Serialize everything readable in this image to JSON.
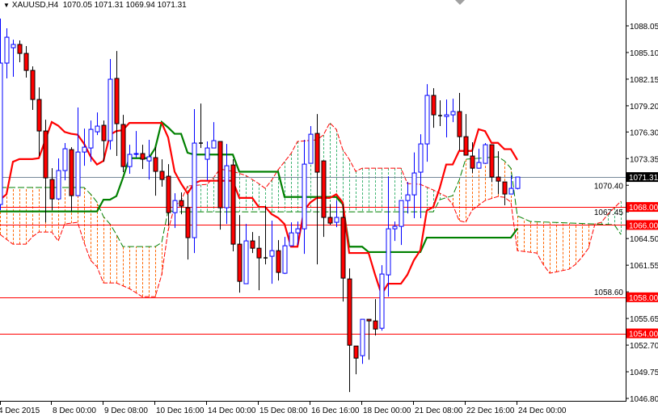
{
  "header": {
    "symbol": "XAUUSD,H4",
    "open": "1070.05",
    "high": "1071.31",
    "low": "1069.94",
    "close": "1071.31",
    "menu_icon": "triangle-down-icon"
  },
  "colors": {
    "bull": "#0000ff",
    "bear_body": "#ff0000",
    "bear_wick": "#000000",
    "tenkan": "#ff0000",
    "kijun": "#008000",
    "span_a": "#ff0000",
    "span_b": "#008000",
    "cloud_bearish": "#ff6600",
    "cloud_bullish": "#3cb371",
    "level_line": "#ff0000",
    "price_line": "#778899"
  },
  "chart_data": {
    "type": "candlestick",
    "timeframe": "H4",
    "ylim": [
      1046.8,
      1088.05
    ],
    "y_ticks": [
      "1088.05",
      "1085.10",
      "1082.15",
      "1079.20",
      "1076.30",
      "1073.35",
      "1070.40",
      "1067.45",
      "1064.50",
      "1061.55",
      "1058.60",
      "1055.65",
      "1052.70",
      "1049.75",
      "1046.80"
    ],
    "x_labels": [
      "4 Dec 2015",
      "8 Dec 00:00",
      "9 Dec 08:00",
      "10 Dec 16:00",
      "14 Dec 00:00",
      "15 Dec 08:00",
      "16 Dec 16:00",
      "18 Dec 00:00",
      "21 Dec 08:00",
      "22 Dec 16:00",
      "24 Dec 00:00"
    ],
    "candles_ohlc": [
      [
        1068.27,
        1088.85,
        1067.64,
        1083.93
      ],
      [
        1083.93,
        1087.78,
        1082.23,
        1086.79
      ],
      [
        1085.63,
        1086.52,
        1082.41,
        1085.99
      ],
      [
        1085.99,
        1086.44,
        1084.02,
        1085.0
      ],
      [
        1085.0,
        1085.81,
        1082.32,
        1083.12
      ],
      [
        1083.12,
        1083.57,
        1078.74,
        1079.9
      ],
      [
        1079.9,
        1081.24,
        1073.64,
        1076.41
      ],
      [
        1076.41,
        1077.66,
        1066.3,
        1071.22
      ],
      [
        1071.04,
        1072.29,
        1067.64,
        1068.89
      ],
      [
        1068.89,
        1073.37,
        1068.8,
        1072.03
      ],
      [
        1072.03,
        1075.07,
        1070.95,
        1074.44
      ],
      [
        1074.35,
        1074.62,
        1067.46,
        1069.25
      ],
      [
        1069.25,
        1079.01,
        1069.25,
        1074.08
      ],
      [
        1074.08,
        1076.68,
        1072.56,
        1074.62
      ],
      [
        1074.53,
        1077.57,
        1073.01,
        1076.59
      ],
      [
        1076.32,
        1078.47,
        1075.96,
        1076.95
      ],
      [
        1077.04,
        1077.57,
        1073.01,
        1075.34
      ],
      [
        1075.34,
        1084.38,
        1074.35,
        1082.14
      ],
      [
        1082.23,
        1085.27,
        1073.64,
        1077.22
      ],
      [
        1077.13,
        1078.2,
        1071.85,
        1072.47
      ],
      [
        1072.47,
        1074.89,
        1071.67,
        1073.82
      ],
      [
        1073.82,
        1076.41,
        1073.46,
        1073.91
      ],
      [
        1073.91,
        1074.89,
        1072.2,
        1073.28
      ],
      [
        1073.1,
        1075.43,
        1071.04,
        1073.55
      ],
      [
        1073.46,
        1074.62,
        1069.25,
        1071.94
      ],
      [
        1071.94,
        1073.28,
        1070.24,
        1071.04
      ],
      [
        1071.4,
        1072.74,
        1065.94,
        1067.37
      ],
      [
        1067.37,
        1069.52,
        1065.67,
        1068.71
      ],
      [
        1068.71,
        1069.61,
        1067.19,
        1068.09
      ],
      [
        1067.91,
        1069.43,
        1062.18,
        1064.6
      ],
      [
        1064.6,
        1078.83,
        1062.9,
        1075.07
      ],
      [
        1075.07,
        1079.45,
        1074.53,
        1075.07
      ],
      [
        1073.28,
        1075.25,
        1070.95,
        1074.53
      ],
      [
        1074.53,
        1077.39,
        1074.53,
        1075.34
      ],
      [
        1075.25,
        1075.25,
        1065.49,
        1067.91
      ],
      [
        1067.91,
        1074.98,
        1066.12,
        1072.56
      ],
      [
        1072.65,
        1073.28,
        1063.08,
        1063.88
      ],
      [
        1063.88,
        1067.1,
        1058.51,
        1059.76
      ],
      [
        1059.5,
        1066.12,
        1059.5,
        1064.24
      ],
      [
        1064.24,
        1065.22,
        1062.9,
        1063.43
      ],
      [
        1063.43,
        1064.78,
        1058.78,
        1062.36
      ],
      [
        1062.36,
        1068.09,
        1061.64,
        1062.36
      ],
      [
        1062.54,
        1066.48,
        1059.5,
        1063.16
      ],
      [
        1063.16,
        1064.33,
        1059.85,
        1060.75
      ],
      [
        1060.66,
        1064.69,
        1060.57,
        1063.7
      ],
      [
        1063.7,
        1066.3,
        1063.7,
        1065.13
      ],
      [
        1065.13,
        1066.39,
        1063.79,
        1065.58
      ],
      [
        1065.58,
        1075.43,
        1062.81,
        1072.74
      ],
      [
        1072.83,
        1076.95,
        1072.83,
        1076.05
      ],
      [
        1076.14,
        1078.29,
        1061.64,
        1071.85
      ],
      [
        1073.1,
        1073.1,
        1064.69,
        1066.84
      ],
      [
        1066.84,
        1068.27,
        1066.03,
        1066.21
      ],
      [
        1066.3,
        1068.71,
        1065.76,
        1066.84
      ],
      [
        1066.84,
        1068.36,
        1057.53,
        1060.12
      ],
      [
        1060.03,
        1061.2,
        1047.5,
        1052.69
      ],
      [
        1052.6,
        1052.6,
        1049.47,
        1051.26
      ],
      [
        1051.53,
        1055.56,
        1050.63,
        1055.56
      ],
      [
        1055.56,
        1055.56,
        1051.08,
        1055.38
      ],
      [
        1055.38,
        1057.8,
        1053.77,
        1054.48
      ],
      [
        1054.57,
        1061.55,
        1054.3,
        1060.57
      ],
      [
        1060.48,
        1071.4,
        1058.06,
        1065.58
      ],
      [
        1065.58,
        1066.39,
        1064.24,
        1065.85
      ],
      [
        1065.85,
        1068.71,
        1063.79,
        1068.71
      ],
      [
        1068.71,
        1070.77,
        1067.28,
        1069.34
      ],
      [
        1069.34,
        1074.03,
        1066.75,
        1071.76
      ],
      [
        1071.85,
        1076.05,
        1066.75,
        1074.98
      ],
      [
        1074.98,
        1081.6,
        1073.01,
        1080.35
      ],
      [
        1080.35,
        1081.15,
        1076.77,
        1078.2
      ],
      [
        1078.11,
        1079.81,
        1076.95,
        1078.11
      ],
      [
        1078.02,
        1079.9,
        1075.7,
        1078.2
      ],
      [
        1078.2,
        1079.99,
        1077.39,
        1078.56
      ],
      [
        1078.56,
        1080.62,
        1074.26,
        1075.78
      ],
      [
        1075.78,
        1078.29,
        1073.73,
        1073.73
      ],
      [
        1073.64,
        1075.16,
        1071.76,
        1072.29
      ],
      [
        1072.29,
        1074.44,
        1072.29,
        1072.92
      ],
      [
        1072.83,
        1075.07,
        1072.83,
        1074.89
      ],
      [
        1074.89,
        1074.89,
        1070.77,
        1071.31
      ],
      [
        1071.31,
        1074.17,
        1069.43,
        1070.86
      ],
      [
        1070.77,
        1070.77,
        1068.18,
        1069.43
      ],
      [
        1069.43,
        1071.49,
        1069.43,
        1070.06
      ],
      [
        1070.05,
        1071.31,
        1069.94,
        1071.31
      ]
    ],
    "tenkan_sen": [
      1068.8,
      1069.4,
      1073.0,
      1073.3,
      1073.3,
      1073.3,
      1073.4,
      1075.4,
      1077.4,
      1077.0,
      1076.3,
      1076.1,
      1076.0,
      1075.0,
      1073.6,
      1072.7,
      1073.1,
      1076.0,
      1076.4,
      1076.5,
      1077.3,
      1077.3,
      1077.3,
      1077.3,
      1077.3,
      1077.3,
      1075.7,
      1071.9,
      1070.6,
      1069.5,
      1070.6,
      1070.9,
      1070.9,
      1070.9,
      1070.9,
      1070.9,
      1070.9,
      1069.0,
      1069.0,
      1069.0,
      1068.0,
      1068.0,
      1067.2,
      1066.8,
      1066.1,
      1063.6,
      1063.6,
      1067.6,
      1068.5,
      1069.0,
      1069.0,
      1069.0,
      1069.4,
      1068.5,
      1062.9,
      1062.9,
      1062.9,
      1062.9,
      1060.5,
      1058.3,
      1059.5,
      1059.5,
      1059.5,
      1060.5,
      1062.1,
      1063.2,
      1067.6,
      1068.0,
      1070.1,
      1072.7,
      1072.7,
      1074.2,
      1074.2,
      1074.2,
      1076.6,
      1076.4,
      1075.1,
      1075.1,
      1074.4,
      1074.4,
      1073.2
    ],
    "kijun_sen": [
      1067.5,
      1067.5,
      1067.5,
      1067.5,
      1067.5,
      1067.5,
      1067.5,
      1067.5,
      1067.5,
      1067.5,
      1067.5,
      1067.5,
      1067.5,
      1067.5,
      1067.5,
      1067.5,
      1068.8,
      1068.8,
      1069.2,
      1071.2,
      1073.4,
      1073.4,
      1073.4,
      1073.4,
      1074.5,
      1077.4,
      1076.8,
      1076.1,
      1076.1,
      1074.0,
      1073.8,
      1073.8,
      1073.8,
      1073.8,
      1073.8,
      1073.8,
      1073.8,
      1071.9,
      1071.9,
      1071.9,
      1071.9,
      1071.9,
      1071.9,
      1071.9,
      1069.1,
      1069.1,
      1069.1,
      1069.1,
      1069.1,
      1069.1,
      1069.1,
      1069.1,
      1069.1,
      1068.3,
      1063.6,
      1063.6,
      1063.6,
      1063.0,
      1063.0,
      1063.0,
      1063.0,
      1063.0,
      1063.0,
      1063.0,
      1063.0,
      1063.0,
      1064.6,
      1064.6,
      1064.6,
      1064.6,
      1064.6,
      1064.6,
      1064.6,
      1064.6,
      1064.6,
      1064.6,
      1064.6,
      1064.6,
      1064.6,
      1064.6,
      1065.6
    ],
    "senkou_span_a_points": [
      [
        0,
        1064.96
      ],
      [
        2,
        1063.88
      ],
      [
        4,
        1063.88
      ],
      [
        5,
        1064.69
      ],
      [
        6,
        1065.22
      ],
      [
        8,
        1065.22
      ],
      [
        9,
        1064.24
      ],
      [
        10,
        1066.12
      ],
      [
        12,
        1066.3
      ],
      [
        13,
        1064.06
      ],
      [
        14,
        1062.09
      ],
      [
        15,
        1061.38
      ],
      [
        16,
        1059.58
      ],
      [
        18,
        1059.58
      ],
      [
        20,
        1058.96
      ],
      [
        22,
        1058.06
      ],
      [
        24,
        1058.06
      ],
      [
        25,
        1060.48
      ],
      [
        26,
        1065.4
      ],
      [
        27,
        1068.09
      ],
      [
        28,
        1068.71
      ],
      [
        29,
        1070.32
      ],
      [
        32,
        1070.5
      ],
      [
        33,
        1071.22
      ],
      [
        34,
        1072.2
      ],
      [
        36,
        1071.94
      ],
      [
        38,
        1071.49
      ],
      [
        40,
        1070.59
      ],
      [
        41,
        1070.06
      ],
      [
        42,
        1070.95
      ],
      [
        43,
        1072.11
      ],
      [
        44,
        1073.01
      ],
      [
        45,
        1073.91
      ],
      [
        46,
        1075.25
      ],
      [
        49,
        1075.43
      ],
      [
        50,
        1075.96
      ],
      [
        51,
        1077.31
      ],
      [
        52,
        1076.59
      ],
      [
        53,
        1074.35
      ],
      [
        54,
        1073.28
      ],
      [
        55,
        1071.94
      ],
      [
        56,
        1072.29
      ],
      [
        62,
        1072.29
      ],
      [
        63,
        1070.59
      ],
      [
        65,
        1070.5
      ],
      [
        67,
        1069.88
      ],
      [
        69,
        1069.16
      ],
      [
        70,
        1068.27
      ],
      [
        71,
        1066.48
      ],
      [
        72,
        1066.3
      ],
      [
        73,
        1067.64
      ],
      [
        75,
        1068.71
      ],
      [
        77,
        1069.16
      ],
      [
        78,
        1069.07
      ],
      [
        79,
        1068.54
      ],
      [
        80,
        1063.16
      ],
      [
        83,
        1062.9
      ],
      [
        84,
        1061.64
      ],
      [
        85,
        1060.66
      ],
      [
        88,
        1061.11
      ],
      [
        89,
        1061.64
      ],
      [
        90,
        1062.45
      ],
      [
        91,
        1063.43
      ],
      [
        92,
        1066.12
      ],
      [
        93,
        1066.3
      ],
      [
        94,
        1067.19
      ],
      [
        96,
        1068.62
      ]
    ],
    "senkou_span_b_points": [
      [
        0,
        1070.15
      ],
      [
        13,
        1070.15
      ],
      [
        14,
        1069.43
      ],
      [
        15,
        1068.54
      ],
      [
        16,
        1066.92
      ],
      [
        17,
        1066.12
      ],
      [
        18,
        1064.96
      ],
      [
        19,
        1063.61
      ],
      [
        24,
        1063.61
      ],
      [
        25,
        1064.06
      ],
      [
        26,
        1067.64
      ],
      [
        27,
        1067.46
      ],
      [
        67,
        1067.46
      ],
      [
        68,
        1068.8
      ],
      [
        70,
        1069.25
      ],
      [
        71,
        1070.95
      ],
      [
        72,
        1073.28
      ],
      [
        77,
        1073.55
      ],
      [
        78,
        1073.1
      ],
      [
        79,
        1072.29
      ],
      [
        80,
        1067.01
      ],
      [
        82,
        1066.39
      ],
      [
        95,
        1066.03
      ],
      [
        96,
        1064.96
      ]
    ],
    "levels": [
      {
        "price": 1068.0,
        "label": "1068.00"
      },
      {
        "price": 1066.0,
        "label": "1066.00"
      },
      {
        "price": 1058.0,
        "label": "1058.00"
      },
      {
        "price": 1054.0,
        "label": "1054.00"
      }
    ],
    "current_price": {
      "price": 1071.31,
      "label": "1071.31"
    }
  }
}
